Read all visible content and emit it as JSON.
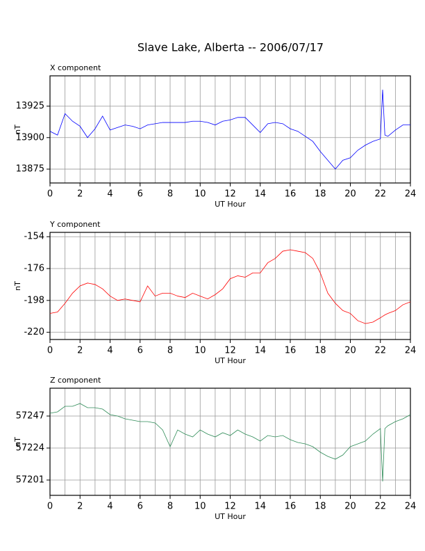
{
  "title": "Slave Lake, Alberta -- 2006/07/17",
  "chart_data": [
    {
      "type": "line",
      "title": "X component",
      "xlabel": "UT Hour",
      "ylabel": "nT",
      "x": [
        0,
        0.5,
        1,
        1.5,
        2,
        2.5,
        3,
        3.5,
        4,
        4.5,
        5,
        5.5,
        6,
        6.5,
        7,
        7.5,
        8,
        8.5,
        9,
        9.5,
        10,
        10.5,
        11,
        11.5,
        12,
        12.5,
        13,
        13.5,
        14,
        14.5,
        15,
        15.5,
        16,
        16.5,
        17,
        17.5,
        18,
        18.5,
        19,
        19.5,
        20,
        20.5,
        21,
        21.5,
        22,
        22.15,
        22.3,
        22.5,
        23,
        23.5,
        24
      ],
      "series": [
        {
          "color": "#0000ff",
          "values": [
            13905,
            13902,
            13919,
            13913,
            13909,
            13900,
            13907,
            13917,
            13906,
            13908,
            13910,
            13909,
            13907,
            13910,
            13911,
            13912,
            13912,
            13912,
            13912,
            13913,
            13913,
            13912,
            13910,
            13913,
            13914,
            13916,
            13916,
            13910,
            13904,
            13911,
            13912,
            13911,
            13907,
            13905,
            13901,
            13897,
            13889,
            13882,
            13875,
            13882,
            13884,
            13890,
            13894,
            13897,
            13899,
            13938,
            13902,
            13901,
            13906,
            13910,
            13910
          ]
        }
      ],
      "xlim": [
        0,
        24
      ],
      "xticks": [
        0,
        2,
        4,
        6,
        8,
        10,
        12,
        14,
        16,
        18,
        20,
        22,
        24
      ],
      "ylim": [
        13864,
        13949
      ],
      "yticks": [
        13875,
        13900,
        13925
      ],
      "grid": true
    },
    {
      "type": "line",
      "title": "Y component",
      "xlabel": "UT Hour",
      "ylabel": "nT",
      "x": [
        0,
        0.5,
        1,
        1.5,
        2,
        2.5,
        3,
        3.5,
        4,
        4.5,
        5,
        5.5,
        6,
        6.5,
        7,
        7.5,
        8,
        8.5,
        9,
        9.5,
        10,
        10.5,
        11,
        11.5,
        12,
        12.5,
        13,
        13.5,
        14,
        14.5,
        15,
        15.5,
        16,
        16.5,
        17,
        17.5,
        18,
        18.5,
        19,
        19.5,
        20,
        20.5,
        21,
        21.5,
        22,
        22.15,
        22.3,
        22.5,
        23,
        23.5,
        24
      ],
      "series": [
        {
          "color": "#ff0000",
          "values": [
            -207,
            -206,
            -200,
            -193,
            -188,
            -186,
            -187,
            -190,
            -195,
            -198,
            -197,
            -198,
            -199,
            -188,
            -195,
            -193,
            -193,
            -195,
            -196,
            -193,
            -195,
            -197,
            -194,
            -190,
            -183,
            -181,
            -182,
            -179,
            -179,
            -172,
            -169,
            -164,
            -163,
            -164,
            -165,
            -169,
            -179,
            -193,
            -200,
            -205,
            -207,
            -212,
            -214,
            -213,
            -210,
            -209,
            -208,
            -207,
            -205,
            -201,
            -199
          ]
        }
      ],
      "xlim": [
        0,
        24
      ],
      "xticks": [
        0,
        2,
        4,
        6,
        8,
        10,
        12,
        14,
        16,
        18,
        20,
        22,
        24
      ],
      "ylim": [
        -225,
        -151
      ],
      "yticks": [
        -220,
        -198,
        -176,
        -154
      ],
      "grid": true
    },
    {
      "type": "line",
      "title": "Z component",
      "xlabel": "UT Hour",
      "ylabel": "nT",
      "x": [
        0,
        0.5,
        1,
        1.5,
        2,
        2.5,
        3,
        3.5,
        4,
        4.5,
        5,
        5.5,
        6,
        6.5,
        7,
        7.5,
        8,
        8.5,
        9,
        9.5,
        10,
        10.5,
        11,
        11.5,
        12,
        12.5,
        13,
        13.5,
        14,
        14.5,
        15,
        15.5,
        16,
        16.5,
        17,
        17.5,
        18,
        18.5,
        19,
        19.5,
        20,
        20.5,
        21,
        21.5,
        22,
        22.15,
        22.3,
        22.5,
        23,
        23.5,
        24
      ],
      "series": [
        {
          "color": "#2e8b57",
          "values": [
            57249,
            57250,
            57254,
            57254,
            57256,
            57253,
            57253,
            57252,
            57248,
            57247,
            57245,
            57244,
            57243,
            57243,
            57242,
            57237,
            57225,
            57237,
            57234,
            57232,
            57237,
            57234,
            57232,
            57235,
            57233,
            57237,
            57234,
            57232,
            57229,
            57233,
            57232,
            57233,
            57230,
            57228,
            57227,
            57225,
            57221,
            57218,
            57216,
            57219,
            57225,
            57227,
            57229,
            57234,
            57238,
            57200,
            57238,
            57240,
            57243,
            57245,
            57248
          ]
        }
      ],
      "xlim": [
        0,
        24
      ],
      "xticks": [
        0,
        2,
        4,
        6,
        8,
        10,
        12,
        14,
        16,
        18,
        20,
        22,
        24
      ],
      "ylim": [
        57190,
        57267
      ],
      "yticks": [
        57201,
        57224,
        57247
      ],
      "grid": true
    }
  ]
}
